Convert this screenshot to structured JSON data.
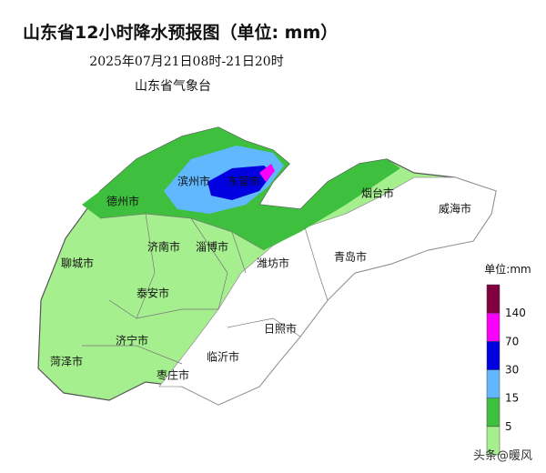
{
  "header": {
    "title": "山东省12小时降水预报图（单位: mm）",
    "period": "2025年07月21日08时-21日20时",
    "issuer": "山东省气象台"
  },
  "cities": [
    "滨州市",
    "东营市",
    "烟台市",
    "威海市",
    "德州市",
    "济南市",
    "淄博市",
    "聊城市",
    "潍坊市",
    "青岛市",
    "泰安市",
    "日照市",
    "济宁市",
    "菏泽市",
    "临沂市",
    "枣庄市"
  ],
  "legend": {
    "unit": "单位:mm",
    "colors": [
      "#a6ef8f",
      "#3ebf3e",
      "#61b8ff",
      "#0000e1",
      "#fa00fa",
      "#800040"
    ],
    "ticks": [
      5,
      15,
      30,
      70,
      140
    ]
  },
  "watermark": "头条@暖风"
}
